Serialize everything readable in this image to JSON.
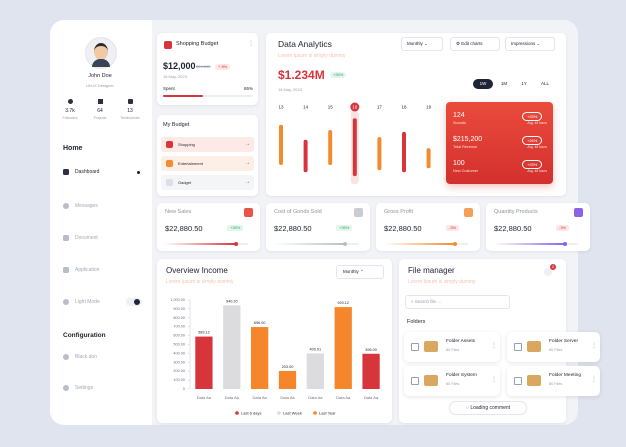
{
  "sidebar": {
    "user_name": "John Doe",
    "role": "UI/UX Designer",
    "stats": [
      {
        "value": "3.7k",
        "label": "Followers"
      },
      {
        "value": "64",
        "label": "Projects"
      },
      {
        "value": "13",
        "label": "Testimonials"
      }
    ],
    "home_heading": "Home",
    "nav": [
      "Dashboard",
      "Messages",
      "Document",
      "Application",
      "Light Mode"
    ],
    "config_heading": "Configuration",
    "config_nav": [
      "Black.don",
      "Settings"
    ]
  },
  "shopping_budget": {
    "title": "Shopping Budget",
    "amount": "$12,000",
    "previous": "$24,356",
    "change": "+ 8%",
    "date": "18 May, 2023",
    "spent_label": "Spent",
    "spent_percent": "65%"
  },
  "my_budget": {
    "title": "My Budget",
    "items": [
      "Shopping",
      "Entertainment",
      "Gadget"
    ]
  },
  "data_analytics": {
    "title": "Data Analytics",
    "subtitle": "Lorem Ipsum is simply dummy",
    "period": "Monthly",
    "edit": "Edit charts",
    "metric": "Impressions",
    "value": "$1.234M",
    "change": "+35%",
    "date": "18 May, 2023",
    "tabs": [
      "1W",
      "1M",
      "1Y",
      "ALL"
    ],
    "days": [
      "13",
      "14",
      "15",
      "16",
      "17",
      "18",
      "19"
    ],
    "bars": [
      [
        23,
        85
      ],
      [
        12,
        62
      ],
      [
        23,
        77
      ],
      [
        6,
        95
      ],
      [
        15,
        66
      ],
      [
        12,
        74
      ],
      [
        18,
        49
      ]
    ],
    "ylim": [
      0,
      100
    ],
    "colors": [
      "#f28a30",
      "#d8343c"
    ],
    "summary": [
      {
        "value": "124",
        "label": "Sounds",
        "change": "+25%",
        "note": "Avg. 48 hours"
      },
      {
        "value": "$215,200",
        "label": "Total Revenue",
        "change": "+26%",
        "note": "Avg. 48 hours"
      },
      {
        "value": "100",
        "label": "New Customer",
        "change": "+25%",
        "note": "Avg. 48 hours"
      }
    ]
  },
  "kpis": [
    {
      "title": "New Sales",
      "value": "$22,880.50",
      "change": "+35%"
    },
    {
      "title": "Cost of Goods Sold",
      "value": "$22,880.50",
      "change": "+35%"
    },
    {
      "title": "Gross Profit",
      "value": "$22,880.50",
      "change": "-3%"
    },
    {
      "title": "Quantity Products",
      "value": "$22,880.50",
      "change": "-3%"
    }
  ],
  "chart_data": {
    "type": "bar",
    "title": "Overview Income",
    "subtitle": "Lorem Ipsum is simply dummy",
    "period": "Monthly",
    "categories": [
      "Data Aa",
      "Data Aa",
      "Data Aa",
      "Data Aa",
      "Data Aa",
      "Data Aa",
      "Data Aa"
    ],
    "series": [
      {
        "name": "Last 6 days",
        "color": "#d8343c",
        "values": [
          589.12,
          null,
          null,
          null,
          null,
          null,
          396.0
        ],
        "value_labels": [
          "589.12",
          null,
          null,
          null,
          null,
          null,
          "396.00"
        ]
      },
      {
        "name": "Last Week",
        "color": "#dcdcde",
        "values": [
          null,
          940.2,
          null,
          null,
          400.01,
          null,
          null
        ],
        "value_labels": [
          null,
          "940.20",
          null,
          null,
          "400.01",
          null,
          null
        ]
      },
      {
        "name": "Last Year",
        "color": "#f5862b",
        "values": [
          null,
          null,
          696.0,
          203.0,
          null,
          920.12,
          null
        ],
        "value_labels": [
          null,
          null,
          "696.00",
          "203.00",
          null,
          "920.12",
          null
        ]
      }
    ],
    "ylim": [
      0,
      1000
    ],
    "yticks": [
      0,
      {
        "value": 100,
        "label": "100.00"
      },
      {
        "value": 200,
        "label": "200.00"
      },
      {
        "value": 300,
        "label": "300.00"
      },
      {
        "value": 400,
        "label": "400.00"
      },
      {
        "value": 500,
        "label": "500.00"
      },
      {
        "value": 600,
        "label": "600.00"
      },
      {
        "value": 700,
        "label": "700.00"
      },
      {
        "value": 800,
        "label": "800.00"
      },
      {
        "value": 900,
        "label": "900.00"
      },
      {
        "value": 1000,
        "label": "1,000.00"
      }
    ]
  },
  "file_manager": {
    "title": "File manager",
    "subtitle": "Lorem Ipsum is simply dummy",
    "notifications": "2",
    "search_placeholder": "Search file ...",
    "folders_heading": "Folders",
    "folders": [
      {
        "name": "Folder Assets",
        "count": "80 Files"
      },
      {
        "name": "Folder Server",
        "count": "80 Files"
      },
      {
        "name": "Folder System",
        "count": "80 Files"
      },
      {
        "name": "Folder Meeting",
        "count": "80 Files"
      }
    ],
    "loading": "Loading comment"
  }
}
